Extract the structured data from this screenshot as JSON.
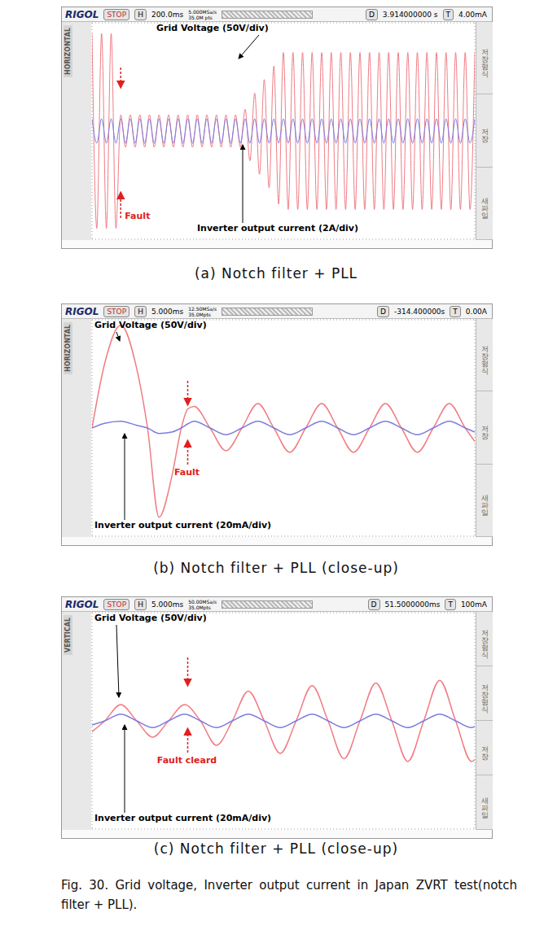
{
  "caption": "Fig. 30. Grid voltage, Inverter output current in Japan ZVRT test(notch filter + PLL).",
  "chart_data": [
    {
      "type": "line",
      "title": "(a) Notch filter + PLL",
      "header": {
        "brand": "RIGOL",
        "status": "STOP",
        "h_label": "H",
        "timebase": "200.0ms",
        "sample_rate": "5.000MSa/s",
        "memory": "35.0M pts",
        "delay_label": "D",
        "delay": "3.914000000 s",
        "trigger_label": "T",
        "trigger_level": "4.00mA",
        "side_label": "HORIZONTAL",
        "menu": [
          "저장형식",
          "저장",
          "새파일"
        ]
      },
      "annotations": [
        {
          "text": "Fault",
          "x": 180
        }
      ],
      "grid": true,
      "tick_labels": false,
      "xlim": [
        0,
        2400
      ],
      "xticks": [
        0,
        200,
        400,
        600,
        800,
        1000,
        1200,
        1400,
        1600,
        1800,
        2000,
        2200,
        2400
      ],
      "ylim": [
        -200,
        200
      ],
      "yticks": [
        -200,
        -150,
        -100,
        -50,
        0,
        50,
        100,
        150,
        200
      ],
      "y2lim": [
        -8,
        8
      ],
      "y2ticks": [
        -8,
        -6,
        -4,
        -2,
        0,
        2,
        4,
        6,
        8
      ],
      "x": [
        0,
        30,
        60,
        90,
        120,
        150,
        180,
        210,
        240,
        270,
        300,
        330,
        360,
        390,
        420,
        450,
        480,
        510,
        540,
        570,
        600,
        630,
        660,
        690,
        720,
        750,
        780,
        810,
        840,
        870,
        900,
        930,
        960,
        990,
        1020,
        1050,
        1080,
        1110,
        1140,
        1170,
        1200,
        1230,
        1260,
        1290,
        1320,
        1350,
        1380,
        1410,
        1440,
        1470,
        1500,
        1530,
        1560,
        1590,
        1620,
        1650,
        1680,
        1710,
        1740,
        1770,
        1800,
        1830,
        1860,
        1890,
        1920,
        1950,
        1980,
        2010,
        2040,
        2070,
        2100,
        2130,
        2160,
        2190,
        2220,
        2250,
        2280,
        2310,
        2340,
        2370,
        2400
      ],
      "series": [
        {
          "name": "Grid Voltage (50V/div)",
          "color": "#f07c84",
          "values": [
            180,
            -180,
            180,
            -180,
            180,
            -180,
            30,
            -30,
            30,
            -30,
            30,
            -30,
            30,
            -30,
            30,
            -30,
            30,
            -30,
            30,
            -30,
            30,
            -30,
            30,
            -30,
            30,
            -30,
            30,
            -30,
            30,
            -30,
            30,
            -30,
            40,
            -55,
            70,
            -80,
            95,
            -105,
            120,
            -135,
            145,
            -145,
            145,
            -145,
            145,
            -145,
            145,
            -145,
            145,
            -145,
            145,
            -145,
            145,
            -145,
            145,
            -145,
            145,
            -145,
            145,
            -145,
            145,
            -145,
            145,
            -145,
            145,
            -145,
            145,
            -145,
            145,
            -145,
            145,
            -145,
            145,
            -145,
            145,
            -145,
            145,
            -145,
            145,
            -145,
            145
          ]
        },
        {
          "name": "Inverter output current (2A/div)",
          "color": "#7c7ce0",
          "axis": "y2",
          "values": [
            0.9,
            -0.9,
            0.9,
            -0.9,
            0.9,
            -0.9,
            0.9,
            -0.9,
            0.9,
            -0.9,
            0.9,
            -0.9,
            0.9,
            -0.9,
            0.9,
            -0.9,
            0.9,
            -0.9,
            0.9,
            -0.9,
            0.9,
            -0.9,
            0.9,
            -0.9,
            0.9,
            -0.9,
            0.9,
            -0.9,
            0.9,
            -0.9,
            0.9,
            -0.9,
            0.9,
            -0.9,
            0.9,
            -0.9,
            0.9,
            -0.9,
            0.9,
            -0.9,
            0.9,
            -0.9,
            0.9,
            -0.9,
            0.9,
            -0.9,
            0.9,
            -0.9,
            0.9,
            -0.9,
            0.9,
            -0.9,
            0.9,
            -0.9,
            0.9,
            -0.9,
            0.9,
            -0.9,
            0.9,
            -0.9,
            0.9,
            -0.9,
            0.9,
            -0.9,
            0.9,
            -0.9,
            0.9,
            -0.9,
            0.9,
            -0.9,
            0.9,
            -0.9,
            0.9,
            -0.9,
            0.9,
            -0.9,
            0.9,
            -0.9,
            0.9,
            -0.9,
            0.9
          ]
        }
      ]
    },
    {
      "type": "line",
      "title": "(b) Notch filter + PLL (close-up)",
      "header": {
        "brand": "RIGOL",
        "status": "STOP",
        "h_label": "H",
        "timebase": "5.000ms",
        "sample_rate": "12.50MSa/s",
        "memory": "35.0Mpts",
        "delay_label": "D",
        "delay": "-314.400000s",
        "trigger_label": "T",
        "trigger_level": "0.00A",
        "side_label": "HORIZONTAL",
        "menu": [
          "저장형식",
          "저장",
          "새파일"
        ]
      },
      "annotations": [
        {
          "text": "Fault",
          "x": 15
        }
      ],
      "grid": true,
      "tick_labels": false,
      "xlim": [
        0,
        60
      ],
      "xticks": [
        0,
        5,
        10,
        15,
        20,
        25,
        30,
        35,
        40,
        45,
        50,
        55,
        60
      ],
      "ylim": [
        -200,
        200
      ],
      "yticks": [
        -200,
        -150,
        -100,
        -50,
        0,
        50,
        100,
        150,
        200
      ],
      "y2lim": [
        -80,
        80
      ],
      "y2ticks": [
        -80,
        -60,
        -40,
        -20,
        0,
        20,
        40,
        60,
        80
      ],
      "x": [
        0,
        2,
        4.5,
        7,
        8.7,
        10.5,
        12.5,
        14,
        15,
        16,
        18.5,
        21,
        23.5,
        26,
        28.5,
        31,
        33.5,
        36,
        38.5,
        41,
        43.5,
        46,
        48.5,
        51,
        53.5,
        56,
        58.5,
        60
      ],
      "series": [
        {
          "name": "Grid Voltage (50V/div)",
          "color": "#f07c84",
          "values": [
            0,
            120,
            190,
            110,
            0,
            -165,
            -90,
            0,
            35,
            40,
            0,
            -42,
            0,
            45,
            0,
            -45,
            0,
            45,
            0,
            -45,
            0,
            45,
            0,
            -45,
            0,
            45,
            0,
            -25
          ]
        },
        {
          "name": "Inverter output current (20mA/div)",
          "color": "#7c7ce0",
          "axis": "y2",
          "values": [
            0,
            3.5,
            5,
            2,
            0,
            -4,
            -3,
            0,
            3,
            5,
            0,
            -5,
            0,
            5,
            0,
            -5,
            0,
            5,
            0,
            -5,
            0,
            5,
            0,
            -5,
            0,
            5,
            0,
            -3
          ]
        }
      ]
    },
    {
      "type": "line",
      "title": "(c) Notch filter + PLL (close-up)",
      "header": {
        "brand": "RIGOL",
        "status": "STOP",
        "h_label": "H",
        "timebase": "5.000ms",
        "sample_rate": "50.00MSa/s",
        "memory": "35.0Mpts",
        "delay_label": "D",
        "delay": "51.5000000ms",
        "trigger_label": "T",
        "trigger_level": "100mA",
        "side_label": "VERTICAL",
        "menu": [
          "저장형식",
          "저장형식",
          "저장",
          "새파일"
        ]
      },
      "annotations": [
        {
          "text": "Fault cleard",
          "x": 15
        }
      ],
      "grid": true,
      "tick_labels": false,
      "xlim": [
        0,
        60
      ],
      "xticks": [
        0,
        5,
        10,
        15,
        20,
        25,
        30,
        35,
        40,
        45,
        50,
        55,
        60
      ],
      "ylim": [
        -200,
        200
      ],
      "yticks": [
        -200,
        -150,
        -100,
        -50,
        0,
        50,
        100,
        150,
        200
      ],
      "y2lim": [
        -80,
        80
      ],
      "y2ticks": [
        -80,
        -60,
        -40,
        -20,
        0,
        20,
        40,
        60,
        80
      ],
      "x": [
        0,
        2,
        4.5,
        7,
        9.5,
        12,
        14.5,
        17,
        19.5,
        22,
        24.5,
        27,
        29.5,
        32,
        34.5,
        37,
        39.5,
        42,
        44.5,
        47,
        49.5,
        52,
        54.5,
        57,
        59.5,
        60
      ],
      "series": [
        {
          "name": "Grid Voltage (50V/div)",
          "color": "#f07c84",
          "values": [
            -20,
            0,
            30,
            0,
            -30,
            0,
            30,
            0,
            -45,
            0,
            55,
            0,
            -60,
            0,
            65,
            0,
            -70,
            0,
            70,
            0,
            -75,
            0,
            75,
            0,
            -75,
            -72
          ]
        },
        {
          "name": "Inverter output current (20mA/div)",
          "color": "#7c7ce0",
          "axis": "y2",
          "values": [
            -3,
            0,
            5,
            0,
            -5,
            0,
            5,
            0,
            -5,
            0,
            5,
            0,
            -5,
            0,
            5,
            0,
            -5,
            0,
            5,
            0,
            -5,
            0,
            5,
            0,
            -5,
            -4
          ]
        }
      ]
    }
  ]
}
